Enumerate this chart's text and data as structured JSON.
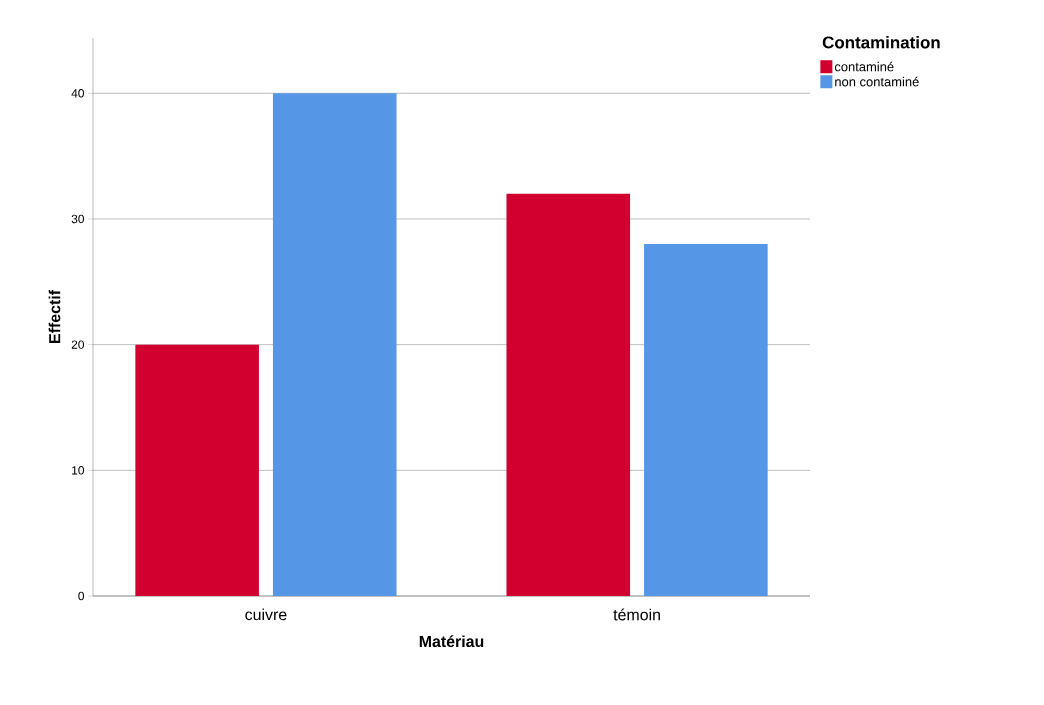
{
  "chart_data": {
    "type": "bar",
    "xlabel": "Matériau",
    "ylabel": "Effectif",
    "legend_title": "Contamination",
    "categories": [
      "cuivre",
      "témoin"
    ],
    "series": [
      {
        "name": "contaminé",
        "color": "#d2002f",
        "values": [
          20,
          32
        ]
      },
      {
        "name": "non contaminé",
        "color": "#5596e6",
        "values": [
          40,
          28
        ]
      }
    ],
    "ylim": [
      0,
      44.4
    ],
    "yticks": [
      0,
      10,
      20,
      30,
      40
    ],
    "grid": "y",
    "legend": "top right"
  }
}
